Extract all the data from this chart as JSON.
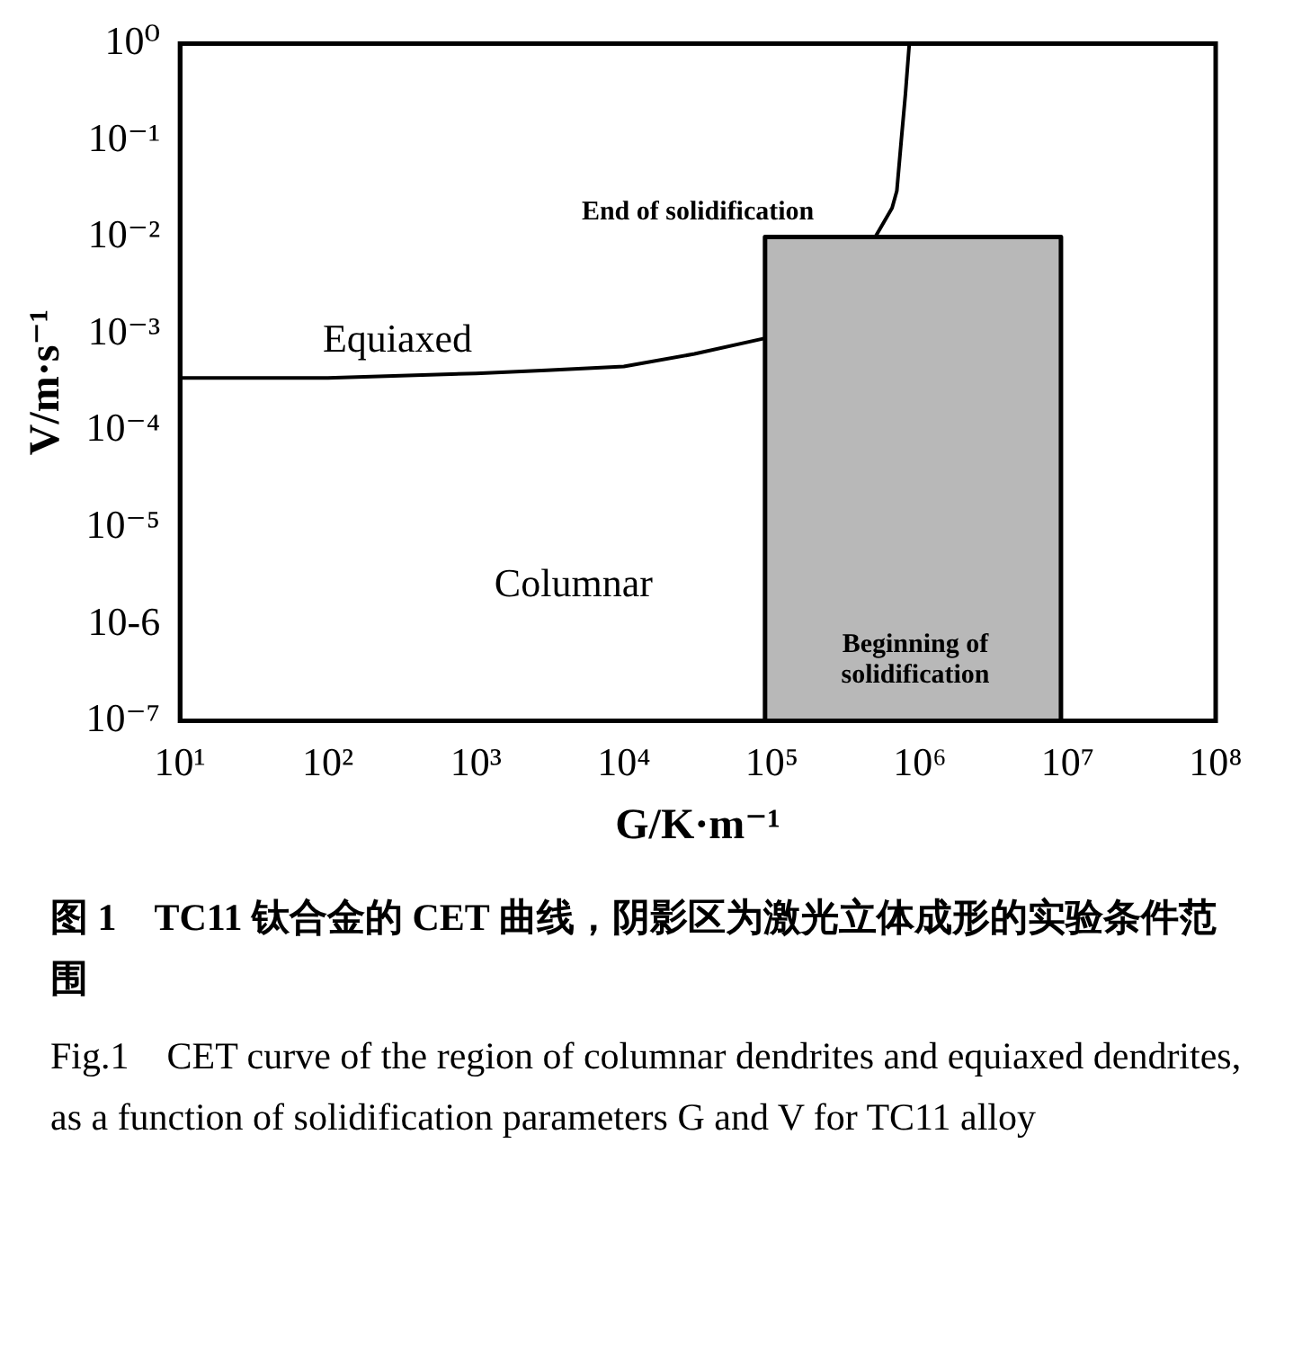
{
  "chart_data": {
    "type": "line",
    "log": "xy",
    "grid": false,
    "legend": false,
    "xlabel": "G/K·m⁻¹",
    "ylabel": "V/m·s⁻¹",
    "xlim": [
      10,
      100000000
    ],
    "ylim": [
      1e-07,
      1
    ],
    "xticks": [
      {
        "value": 10,
        "label": "10¹"
      },
      {
        "value": 100,
        "label": "10²"
      },
      {
        "value": 1000,
        "label": "10³"
      },
      {
        "value": 10000,
        "label": "10⁴"
      },
      {
        "value": 100000,
        "label": "10⁵"
      },
      {
        "value": 1000000,
        "label": "10⁶"
      },
      {
        "value": 10000000,
        "label": "10⁷"
      },
      {
        "value": 100000000,
        "label": "10⁸"
      }
    ],
    "yticks": [
      {
        "value": 1e-07,
        "label": "10⁻⁷"
      },
      {
        "value": 1e-06,
        "label": "10-6"
      },
      {
        "value": 1e-05,
        "label": "10⁻⁵"
      },
      {
        "value": 0.0001,
        "label": "10⁻⁴"
      },
      {
        "value": 0.001,
        "label": "10⁻³"
      },
      {
        "value": 0.01,
        "label": "10⁻²"
      },
      {
        "value": 0.1,
        "label": "10⁻¹"
      },
      {
        "value": 1,
        "label": "10⁰"
      }
    ],
    "series": [
      {
        "type": "area",
        "color": "#b8b8b8",
        "x": [
          90000,
          90000,
          9000000,
          9000000
        ],
        "values": [
          1e-07,
          0.01,
          0.01,
          1e-07
        ]
      },
      {
        "type": "line",
        "color": "#000000",
        "x": [
          10,
          100,
          1000,
          3000,
          10000,
          30000,
          90000,
          300000,
          500000,
          650000,
          700000,
          750000,
          800000,
          850000
        ],
        "values": [
          0.00035,
          0.00035,
          0.00039,
          0.00042,
          0.00046,
          0.00062,
          0.0009,
          null,
          0.01,
          0.02,
          0.03,
          0.1,
          0.3,
          1
        ]
      }
    ],
    "annotations": [
      "Equiaxed",
      "Columnar",
      "End of solidification",
      "Beginning of\nsolidification",
      "图 1　TC11 钛合金的 CET 曲线，阴影区为激光立体成形的实验条件范围",
      "Fig.1　CET curve of the region of columnar dendrites and equiaxed dendrites, as a function of solidification parameters G and V for TC11 alloy"
    ]
  }
}
